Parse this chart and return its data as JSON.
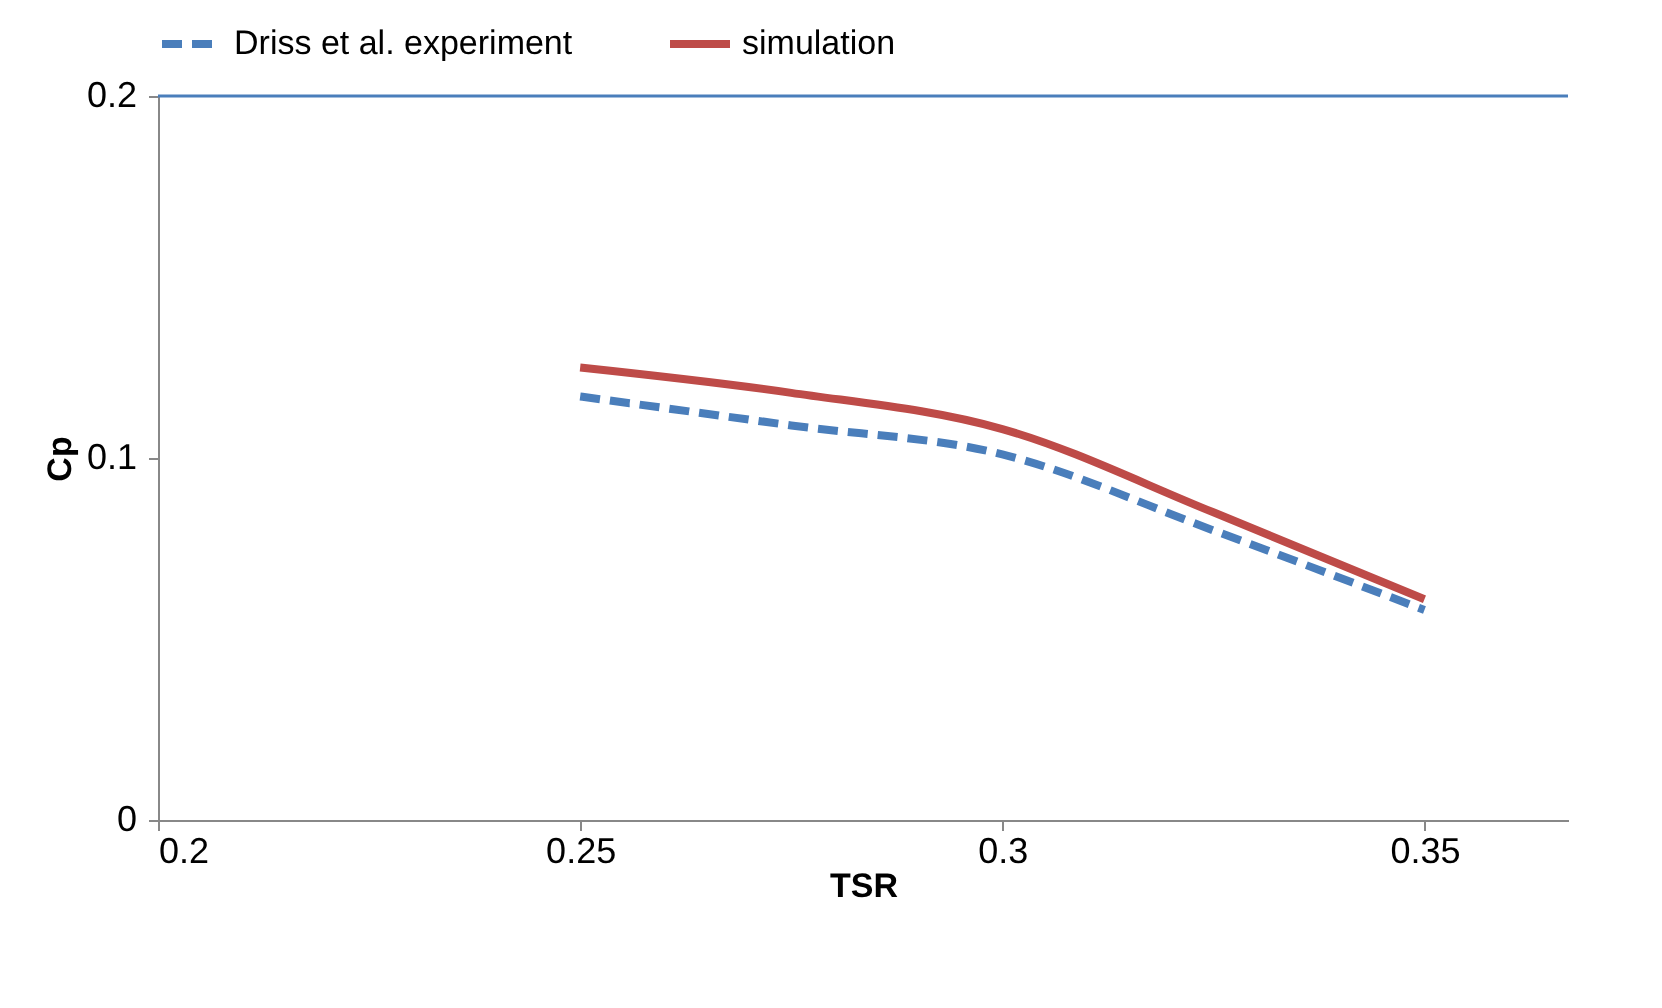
{
  "chart_data": {
    "type": "line",
    "xlabel": "TSR",
    "ylabel": "Cp",
    "x": [
      0.25,
      0.275,
      0.3,
      0.325,
      0.35
    ],
    "series": [
      {
        "name": "Driss et al. experiment",
        "color": "#4a7ebb",
        "line_style": "dashed",
        "values": [
          0.117,
          0.109,
          0.101,
          0.08,
          0.058
        ]
      },
      {
        "name": "simulation",
        "color": "#be4b48",
        "line_style": "solid",
        "values": [
          0.125,
          0.118,
          0.108,
          0.085,
          0.061
        ]
      }
    ],
    "xlim": [
      0.2,
      0.367
    ],
    "xticks": [
      0.2,
      0.25,
      0.3,
      0.35
    ],
    "ylim": [
      0,
      0.2
    ],
    "yticks": [
      0,
      0.1,
      0.2
    ],
    "grid": false,
    "legend": "top",
    "marker": "none"
  }
}
